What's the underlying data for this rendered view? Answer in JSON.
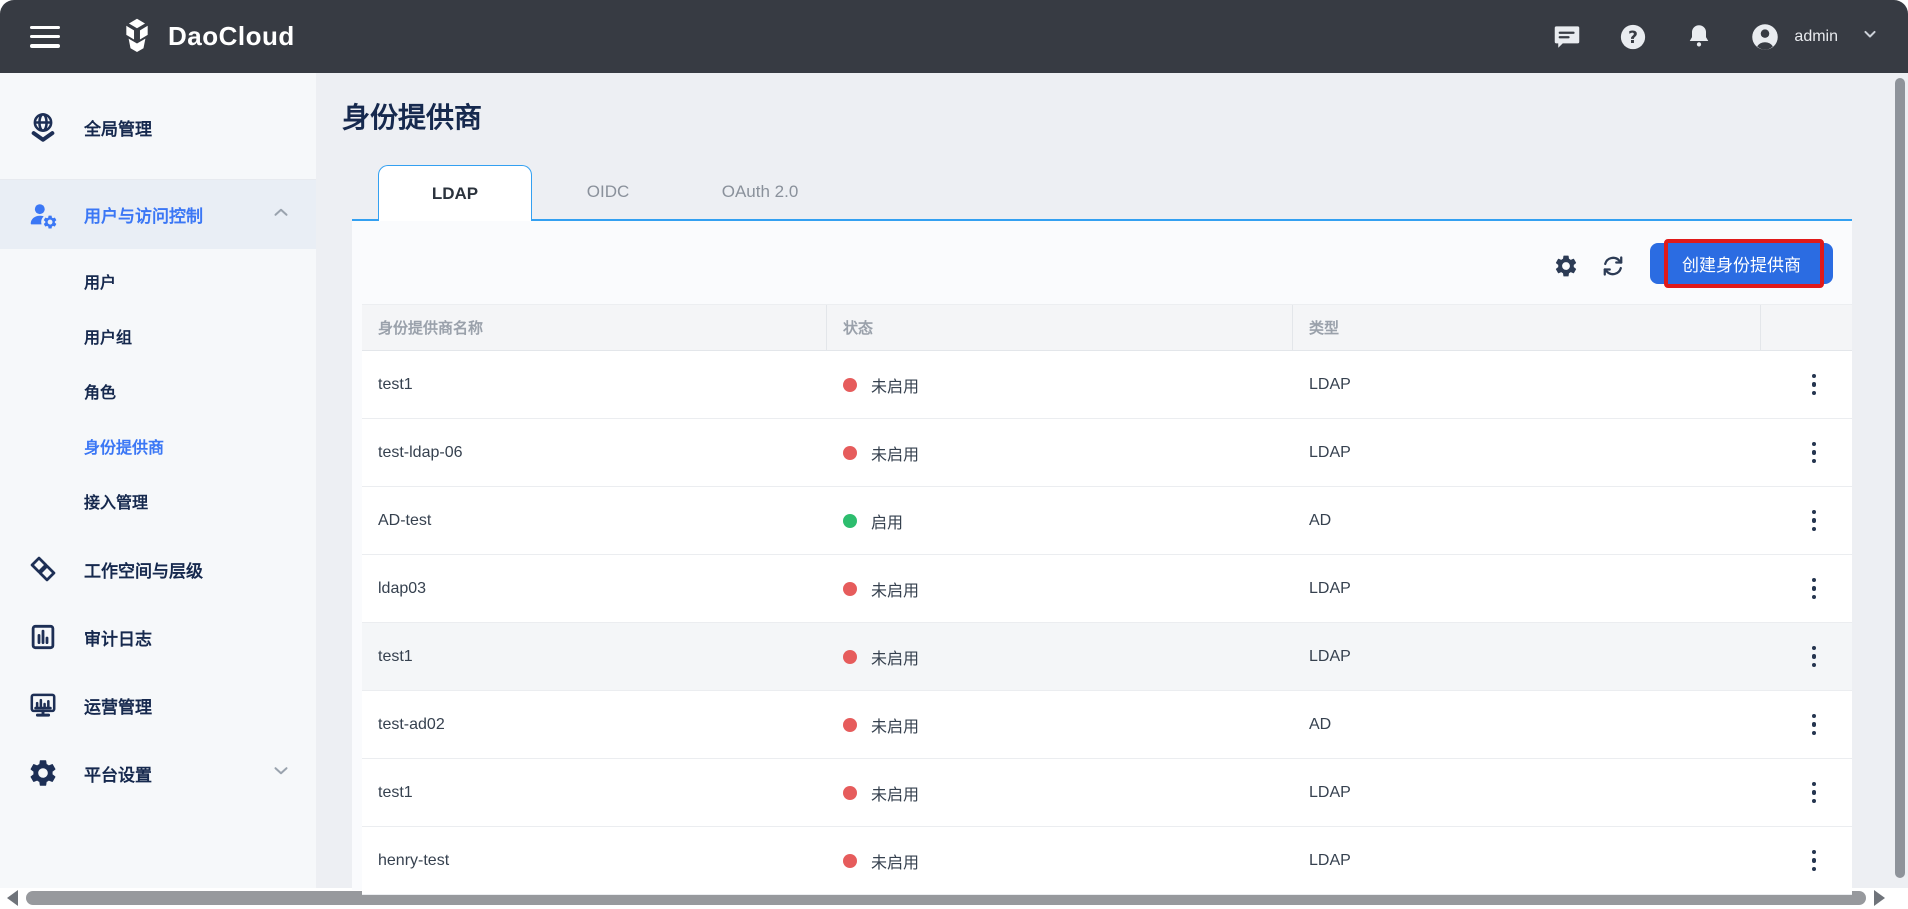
{
  "topbar": {
    "brand": "DaoCloud",
    "user": "admin",
    "icons": [
      "menu-icon",
      "chat-icon",
      "help-icon",
      "bell-icon",
      "avatar",
      "chevron-down-icon"
    ]
  },
  "sidebar": {
    "items": [
      {
        "id": "global-management",
        "label": "全局管理",
        "icon": "globe",
        "type": "top"
      },
      {
        "id": "users-access-control",
        "label": "用户与访问控制",
        "icon": "user-gear",
        "type": "group",
        "expanded": true,
        "active": true,
        "children": [
          {
            "id": "users",
            "label": "用户",
            "active": false
          },
          {
            "id": "user-groups",
            "label": "用户组",
            "active": false
          },
          {
            "id": "roles",
            "label": "角色",
            "active": false
          },
          {
            "id": "identity-providers",
            "label": "身份提供商",
            "active": true
          },
          {
            "id": "access-management",
            "label": "接入管理",
            "active": false
          }
        ]
      },
      {
        "id": "workspace-hierarchy",
        "label": "工作空间与层级",
        "icon": "workspace",
        "type": "top"
      },
      {
        "id": "audit-logs",
        "label": "审计日志",
        "icon": "audit",
        "type": "top"
      },
      {
        "id": "operations",
        "label": "运营管理",
        "icon": "operations",
        "type": "top"
      },
      {
        "id": "platform-settings",
        "label": "平台设置",
        "icon": "gear",
        "type": "top",
        "collapsible": true
      }
    ]
  },
  "main": {
    "title": "身份提供商",
    "tabs": [
      {
        "label": "LDAP",
        "active": true
      },
      {
        "label": "OIDC",
        "active": false
      },
      {
        "label": "OAuth 2.0",
        "active": false
      }
    ],
    "toolbar": {
      "create_label": "创建身份提供商",
      "icons": [
        "gear-icon",
        "refresh-icon"
      ]
    },
    "table": {
      "columns": [
        "身份提供商名称",
        "状态",
        "类型",
        ""
      ],
      "rows": [
        {
          "name": "test1",
          "status": "未启用",
          "status_key": "disabled",
          "type": "LDAP",
          "highlight": false
        },
        {
          "name": "test-ldap-06",
          "status": "未启用",
          "status_key": "disabled",
          "type": "LDAP",
          "highlight": false
        },
        {
          "name": "AD-test",
          "status": "启用",
          "status_key": "enabled",
          "type": "AD",
          "highlight": false
        },
        {
          "name": "ldap03",
          "status": "未启用",
          "status_key": "disabled",
          "type": "LDAP",
          "highlight": false
        },
        {
          "name": "test1",
          "status": "未启用",
          "status_key": "disabled",
          "type": "LDAP",
          "highlight": true
        },
        {
          "name": "test-ad02",
          "status": "未启用",
          "status_key": "disabled",
          "type": "AD",
          "highlight": false
        },
        {
          "name": "test1",
          "status": "未启用",
          "status_key": "disabled",
          "type": "LDAP",
          "highlight": false
        },
        {
          "name": "henry-test",
          "status": "未启用",
          "status_key": "disabled",
          "type": "LDAP",
          "highlight": false
        }
      ]
    }
  },
  "colors": {
    "topbar_bg": "#373b43",
    "accent_blue": "#2b6ce2",
    "sidebar_active_blue": "#3b77f5",
    "tab_border_blue": "#33a0f1",
    "annotation_red": "#e01a1a",
    "status_enabled_green": "#2dbd6e",
    "status_disabled_red": "#e65c5c"
  }
}
